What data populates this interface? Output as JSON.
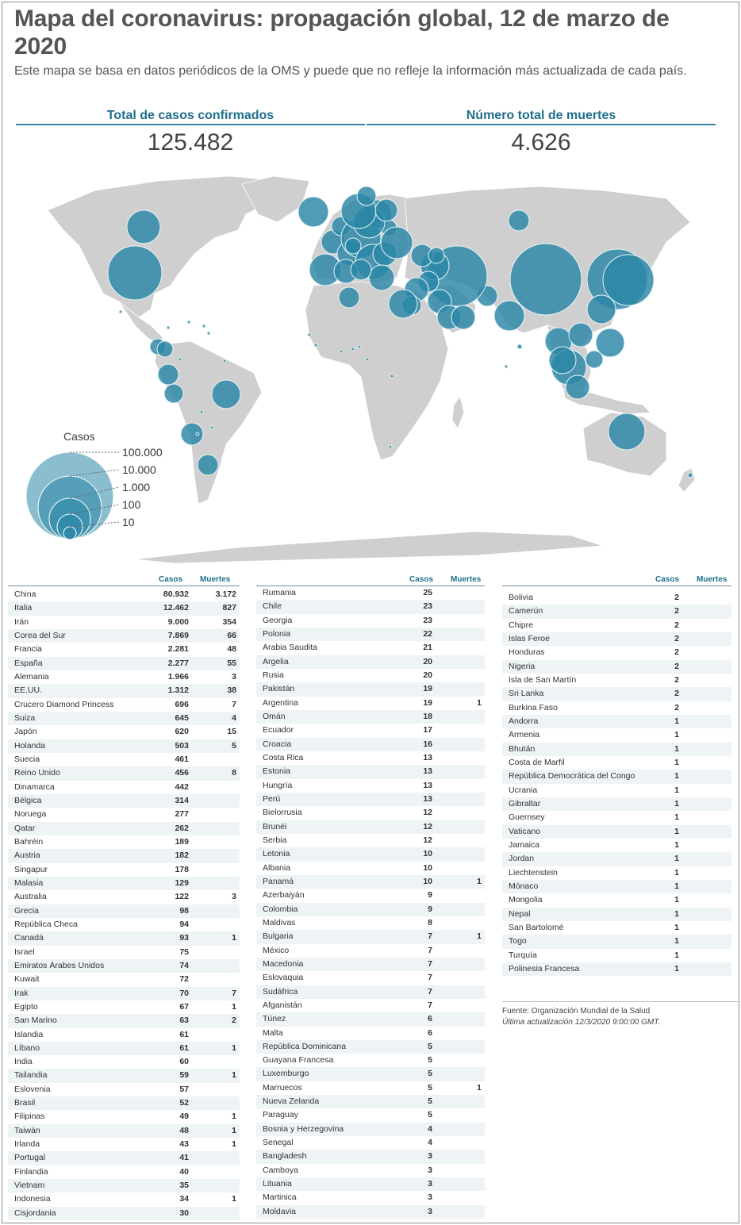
{
  "header": {
    "title": "Mapa del coronavirus: propagación global, 12 de marzo de 2020",
    "subtitle": "Este mapa se basa en datos periódicos de la OMS y puede que no refleje la información más actualizada de cada país."
  },
  "stats": {
    "cases_label": "Total de casos confirmados",
    "cases_value": "125.482",
    "deaths_label": "Número total de muertes",
    "deaths_value": "4.626"
  },
  "colors": {
    "land": "#cfcfcf",
    "bubble": "#2a86a6",
    "accent": "#1f6f8e"
  },
  "legend": {
    "title": "Casos",
    "levels": [
      "100.000",
      "10.000",
      "1.000",
      "100",
      "10"
    ]
  },
  "table_headers": {
    "cases": "Casos",
    "deaths": "Muertes"
  },
  "table1": [
    [
      "China",
      "80.932",
      "3.172"
    ],
    [
      "Italia",
      "12.462",
      "827"
    ],
    [
      "Irán",
      "9.000",
      "354"
    ],
    [
      "Corea del Sur",
      "7.869",
      "66"
    ],
    [
      "Francia",
      "2.281",
      "48"
    ],
    [
      "España",
      "2.277",
      "55"
    ],
    [
      "Alemania",
      "1.966",
      "3"
    ],
    [
      "EE.UU.",
      "1.312",
      "38"
    ],
    [
      "Crucero Diamond Princess",
      "696",
      "7"
    ],
    [
      "Suiza",
      "645",
      "4"
    ],
    [
      "Japón",
      "620",
      "15"
    ],
    [
      "Holanda",
      "503",
      "5"
    ],
    [
      "Suecia",
      "461",
      ""
    ],
    [
      "Reino Unido",
      "456",
      "8"
    ],
    [
      "Dinamarca",
      "442",
      ""
    ],
    [
      "Bélgica",
      "314",
      ""
    ],
    [
      "Noruega",
      "277",
      ""
    ],
    [
      "Qatar",
      "262",
      ""
    ],
    [
      "Bahréin",
      "189",
      ""
    ],
    [
      "Austria",
      "182",
      ""
    ],
    [
      "Singapur",
      "178",
      ""
    ],
    [
      "Malasia",
      "129",
      ""
    ],
    [
      "Australia",
      "122",
      "3"
    ],
    [
      "Grecia",
      "98",
      ""
    ],
    [
      "República Checa",
      "94",
      ""
    ],
    [
      "Canadá",
      "93",
      "1"
    ],
    [
      "Israel",
      "75",
      ""
    ],
    [
      "Emiratos Árabes Unidos",
      "74",
      ""
    ],
    [
      "Kuwait",
      "72",
      ""
    ],
    [
      "Irak",
      "70",
      "7"
    ],
    [
      "Egipto",
      "67",
      "1"
    ],
    [
      "San Marino",
      "63",
      "2"
    ],
    [
      "Islandia",
      "61",
      ""
    ],
    [
      "Líbano",
      "61",
      "1"
    ],
    [
      "India",
      "60",
      ""
    ],
    [
      "Tailandia",
      "59",
      "1"
    ],
    [
      "Eslovenia",
      "57",
      ""
    ],
    [
      "Brasil",
      "52",
      ""
    ],
    [
      "Filipinas",
      "49",
      "1"
    ],
    [
      "Taiwán",
      "48",
      "1"
    ],
    [
      "Irlanda",
      "43",
      "1"
    ],
    [
      "Portugal",
      "41",
      ""
    ],
    [
      "Finlandia",
      "40",
      ""
    ],
    [
      "Vietnam",
      "35",
      ""
    ],
    [
      "Indonesia",
      "34",
      "1"
    ],
    [
      "Cisjordania",
      "30",
      ""
    ]
  ],
  "table2": [
    [
      "Rumania",
      "25",
      ""
    ],
    [
      "Chile",
      "23",
      ""
    ],
    [
      "Georgia",
      "23",
      ""
    ],
    [
      "Polonia",
      "22",
      ""
    ],
    [
      "Arabia Saudita",
      "21",
      ""
    ],
    [
      "Argelia",
      "20",
      ""
    ],
    [
      "Rusia",
      "20",
      ""
    ],
    [
      "Pakistán",
      "19",
      ""
    ],
    [
      "Argentina",
      "19",
      "1"
    ],
    [
      "Omán",
      "18",
      ""
    ],
    [
      "Ecuador",
      "17",
      ""
    ],
    [
      "Croacia",
      "16",
      ""
    ],
    [
      "Costa Rica",
      "13",
      ""
    ],
    [
      "Estonia",
      "13",
      ""
    ],
    [
      "Hungría",
      "13",
      ""
    ],
    [
      "Perú",
      "13",
      ""
    ],
    [
      "Bielorrusia",
      "12",
      ""
    ],
    [
      "Brunéi",
      "12",
      ""
    ],
    [
      "Serbia",
      "12",
      ""
    ],
    [
      "Letonia",
      "10",
      ""
    ],
    [
      "Albania",
      "10",
      ""
    ],
    [
      "Panamá",
      "10",
      "1"
    ],
    [
      "Azerbaiyán",
      "9",
      ""
    ],
    [
      "Colombia",
      "9",
      ""
    ],
    [
      "Maldivas",
      "8",
      ""
    ],
    [
      "Bulgaria",
      "7",
      "1"
    ],
    [
      "México",
      "7",
      ""
    ],
    [
      "Macedonia",
      "7",
      ""
    ],
    [
      "Eslovaquia",
      "7",
      ""
    ],
    [
      "Sudáfrica",
      "7",
      ""
    ],
    [
      "Afganistán",
      "7",
      ""
    ],
    [
      "Túnez",
      "6",
      ""
    ],
    [
      "Malta",
      "6",
      ""
    ],
    [
      "República Dominicana",
      "5",
      ""
    ],
    [
      "Guayana Francesa",
      "5",
      ""
    ],
    [
      "Luxemburgo",
      "5",
      ""
    ],
    [
      "Marruecos",
      "5",
      "1"
    ],
    [
      "Nueva Zelanda",
      "5",
      ""
    ],
    [
      "Paraguay",
      "5",
      ""
    ],
    [
      "Bosnia y Herzegovina",
      "4",
      ""
    ],
    [
      "Senegal",
      "4",
      ""
    ],
    [
      "Bangladesh",
      "3",
      ""
    ],
    [
      "Camboya",
      "3",
      ""
    ],
    [
      "Lituania",
      "3",
      ""
    ],
    [
      "Martinica",
      "3",
      ""
    ],
    [
      "Moldavia",
      "3",
      ""
    ]
  ],
  "table3": [
    [
      "Bolivia",
      "2",
      ""
    ],
    [
      "Camerún",
      "2",
      ""
    ],
    [
      "Chipre",
      "2",
      ""
    ],
    [
      "Islas Feroe",
      "2",
      ""
    ],
    [
      "Honduras",
      "2",
      ""
    ],
    [
      "Nigeria",
      "2",
      ""
    ],
    [
      "Isla de San Martín",
      "2",
      ""
    ],
    [
      "Sri Lanka",
      "2",
      ""
    ],
    [
      "Burkina Faso",
      "2",
      ""
    ],
    [
      "Andorra",
      "1",
      ""
    ],
    [
      "Armenia",
      "1",
      ""
    ],
    [
      "Bhután",
      "1",
      ""
    ],
    [
      "Costa de Marfil",
      "1",
      ""
    ],
    [
      "República Democrática del Congo",
      "1",
      ""
    ],
    [
      "Ucrania",
      "1",
      ""
    ],
    [
      "Gibraltar",
      "1",
      ""
    ],
    [
      "Guernsey",
      "1",
      ""
    ],
    [
      "Vaticano",
      "1",
      ""
    ],
    [
      "Jamaica",
      "1",
      ""
    ],
    [
      "Jordan",
      "1",
      ""
    ],
    [
      "Liechtenstein",
      "1",
      ""
    ],
    [
      "Mónaco",
      "1",
      ""
    ],
    [
      "Mongolia",
      "1",
      ""
    ],
    [
      "Nepal",
      "1",
      ""
    ],
    [
      "San Bartolomé",
      "1",
      ""
    ],
    [
      "Togo",
      "1",
      ""
    ],
    [
      "Turquía",
      "1",
      ""
    ],
    [
      "Polinesia Francesa",
      "1",
      ""
    ]
  ],
  "footer": {
    "source": "Fuente: Organización Mundial de la Salud",
    "updated": "Última actualización 12/3/2020 9:00:00 GMT."
  }
}
